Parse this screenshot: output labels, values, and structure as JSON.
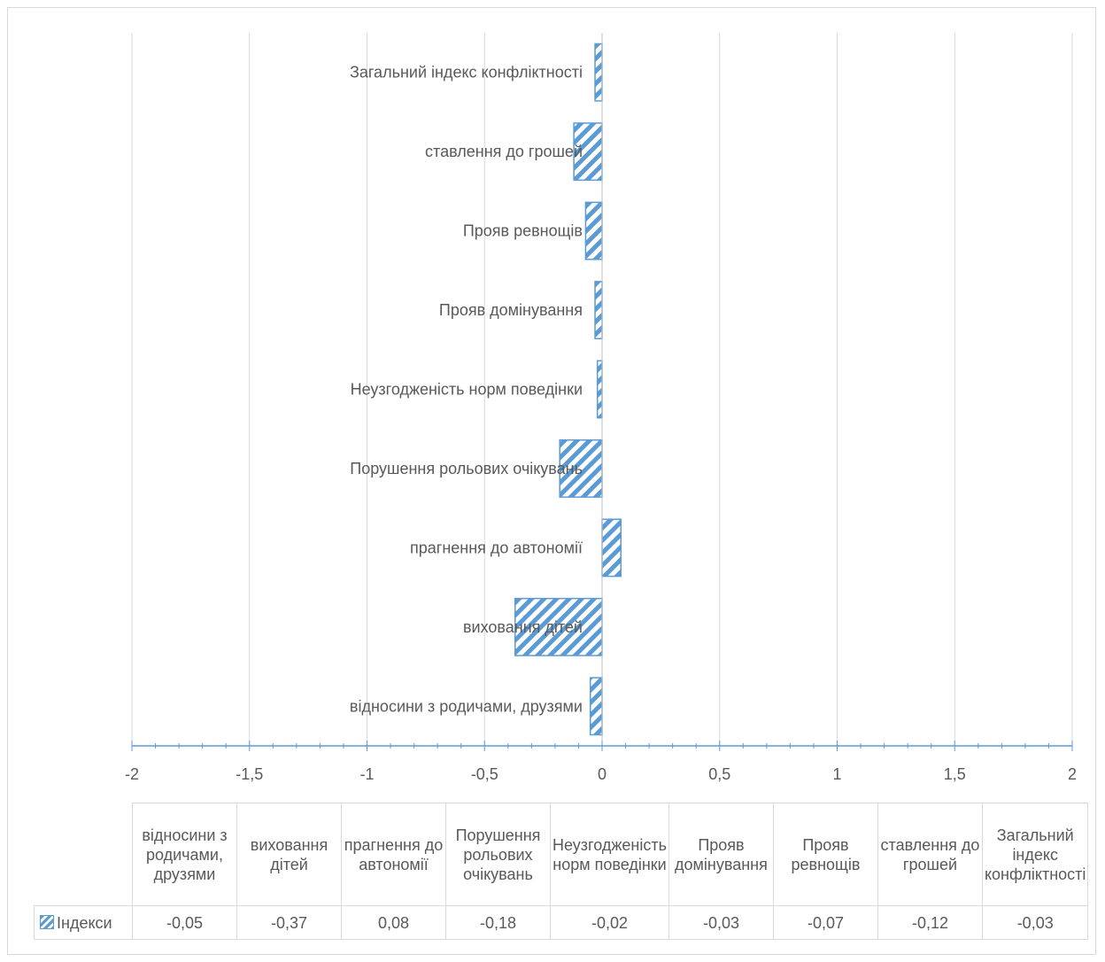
{
  "chart_data": {
    "type": "bar",
    "orientation": "horizontal",
    "categories": [
      "відносини з родичами, друзями",
      "виховання дітей",
      "прагнення до автономії",
      "Порушення рольових очікувань",
      "Неузгодженість норм поведінки",
      "Прояв домінування",
      "Прояв ревнощів",
      "ставлення до грошей",
      "Загальний індекс конфліктності"
    ],
    "table_headers": [
      "відносини з родичами, друзями",
      "виховання дітей",
      "прагнення до автономії",
      "Порушення рольових очікувань",
      "Неузгодженість норм поведінки",
      "Прояв домінування",
      "Прояв ревнощів",
      "ставлення до грошей",
      "Загальний індекс конфліктності"
    ],
    "series": [
      {
        "name": "Індекси",
        "values": [
          -0.05,
          -0.37,
          0.08,
          -0.18,
          -0.02,
          -0.03,
          -0.07,
          -0.12,
          -0.03
        ],
        "value_labels": [
          "-0,05",
          "-0,37",
          "0,08",
          "-0,18",
          "-0,02",
          "-0,03",
          "-0,07",
          "-0,12",
          "-0,03"
        ]
      }
    ],
    "xlim": [
      -2,
      2
    ],
    "x_ticks": [
      -2,
      -1.5,
      -1,
      -0.5,
      0,
      0.5,
      1,
      1.5,
      2
    ],
    "x_tick_labels": [
      "-2",
      "-1,5",
      "-1",
      "-0,5",
      "0",
      "0,5",
      "1",
      "1,5",
      "2"
    ],
    "title": "",
    "xlabel": "",
    "ylabel": "",
    "grid": "vertical",
    "data_table": true,
    "colors": {
      "bar": "#5b9bd5",
      "grid": "#d9d9d9",
      "axis": "#5b9bd5",
      "text": "#595959"
    }
  }
}
